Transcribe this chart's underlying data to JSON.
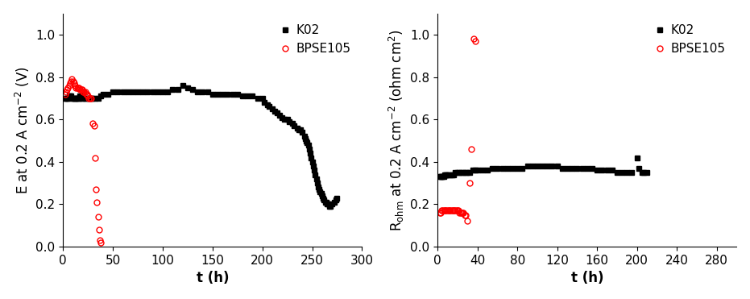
{
  "left": {
    "title": "",
    "xlabel": "t (h)",
    "ylabel": "E at 0.2 A cm⁻² (V)",
    "xlim": [
      0,
      300
    ],
    "ylim": [
      0.0,
      1.1
    ],
    "yticks": [
      0.0,
      0.2,
      0.4,
      0.6,
      0.8,
      1.0
    ],
    "xticks": [
      0,
      50,
      100,
      150,
      200,
      250,
      300
    ],
    "K02_t": [
      2,
      3,
      4,
      5,
      6,
      7,
      8,
      9,
      10,
      11,
      12,
      13,
      14,
      15,
      16,
      17,
      18,
      19,
      20,
      22,
      24,
      26,
      28,
      30,
      32,
      35,
      38,
      40,
      45,
      50,
      55,
      60,
      65,
      70,
      75,
      80,
      85,
      90,
      95,
      100,
      105,
      110,
      115,
      120,
      125,
      130,
      135,
      140,
      145,
      150,
      155,
      160,
      165,
      170,
      175,
      180,
      185,
      190,
      195,
      200,
      202,
      205,
      207,
      210,
      212,
      215,
      217,
      220,
      222,
      225,
      227,
      230,
      232,
      235,
      237,
      238,
      240,
      242,
      243,
      244,
      245,
      246,
      247,
      248,
      249,
      250,
      251,
      252,
      253,
      254,
      255,
      256,
      257,
      258,
      259,
      260,
      261,
      262,
      263,
      264,
      265,
      266,
      267,
      268,
      270,
      272,
      274,
      275
    ],
    "K02_E": [
      0.7,
      0.7,
      0.7,
      0.7,
      0.71,
      0.71,
      0.71,
      0.7,
      0.7,
      0.7,
      0.7,
      0.7,
      0.7,
      0.7,
      0.7,
      0.71,
      0.71,
      0.7,
      0.7,
      0.7,
      0.7,
      0.7,
      0.7,
      0.7,
      0.7,
      0.7,
      0.71,
      0.72,
      0.72,
      0.73,
      0.73,
      0.73,
      0.73,
      0.73,
      0.73,
      0.73,
      0.73,
      0.73,
      0.73,
      0.73,
      0.73,
      0.74,
      0.74,
      0.76,
      0.75,
      0.74,
      0.73,
      0.73,
      0.73,
      0.72,
      0.72,
      0.72,
      0.72,
      0.72,
      0.72,
      0.71,
      0.71,
      0.71,
      0.7,
      0.7,
      0.68,
      0.67,
      0.66,
      0.65,
      0.64,
      0.63,
      0.62,
      0.61,
      0.6,
      0.6,
      0.59,
      0.58,
      0.57,
      0.56,
      0.55,
      0.55,
      0.54,
      0.52,
      0.51,
      0.5,
      0.49,
      0.48,
      0.46,
      0.44,
      0.42,
      0.4,
      0.38,
      0.36,
      0.34,
      0.32,
      0.3,
      0.28,
      0.27,
      0.26,
      0.25,
      0.24,
      0.23,
      0.22,
      0.21,
      0.21,
      0.2,
      0.2,
      0.19,
      0.19,
      0.2,
      0.21,
      0.22,
      0.23
    ],
    "BPSE105_t": [
      2,
      3,
      4,
      5,
      6,
      7,
      8,
      9,
      10,
      11,
      12,
      13,
      14,
      15,
      16,
      17,
      18,
      19,
      20,
      21,
      22,
      23,
      24,
      25,
      26,
      27,
      28,
      30,
      31,
      32,
      33,
      34,
      35,
      36,
      37,
      38
    ],
    "BPSE105_E": [
      0.72,
      0.73,
      0.74,
      0.75,
      0.76,
      0.77,
      0.78,
      0.79,
      0.78,
      0.77,
      0.76,
      0.75,
      0.75,
      0.75,
      0.75,
      0.74,
      0.74,
      0.74,
      0.73,
      0.73,
      0.73,
      0.72,
      0.72,
      0.71,
      0.7,
      0.7,
      0.7,
      0.58,
      0.57,
      0.42,
      0.27,
      0.21,
      0.14,
      0.08,
      0.03,
      0.02
    ]
  },
  "right": {
    "title": "",
    "xlabel": "t (h)",
    "ylabel": "R₀ₕₘ at 0.2 A cm⁻² (ohm cm²)",
    "xlim": [
      0,
      300
    ],
    "ylim": [
      0.0,
      1.1
    ],
    "yticks": [
      0.0,
      0.2,
      0.4,
      0.6,
      0.8,
      1.0
    ],
    "xticks": [
      0,
      40,
      80,
      120,
      160,
      200,
      240,
      280
    ],
    "K02_t": [
      2,
      3,
      4,
      5,
      6,
      7,
      8,
      9,
      10,
      12,
      14,
      16,
      18,
      20,
      22,
      24,
      26,
      28,
      30,
      32,
      35,
      38,
      40,
      45,
      50,
      55,
      60,
      65,
      70,
      75,
      80,
      85,
      90,
      95,
      100,
      105,
      110,
      115,
      120,
      125,
      130,
      135,
      140,
      145,
      150,
      155,
      160,
      165,
      170,
      175,
      180,
      185,
      190,
      195,
      200,
      202,
      205,
      207,
      210
    ],
    "K02_R": [
      0.33,
      0.33,
      0.33,
      0.33,
      0.33,
      0.34,
      0.34,
      0.34,
      0.34,
      0.34,
      0.34,
      0.34,
      0.35,
      0.35,
      0.35,
      0.35,
      0.35,
      0.35,
      0.35,
      0.35,
      0.36,
      0.36,
      0.36,
      0.36,
      0.36,
      0.37,
      0.37,
      0.37,
      0.37,
      0.37,
      0.37,
      0.37,
      0.38,
      0.38,
      0.38,
      0.38,
      0.38,
      0.38,
      0.38,
      0.37,
      0.37,
      0.37,
      0.37,
      0.37,
      0.37,
      0.37,
      0.36,
      0.36,
      0.36,
      0.36,
      0.35,
      0.35,
      0.35,
      0.35,
      0.42,
      0.37,
      0.35,
      0.35,
      0.35
    ],
    "BPSE105_t": [
      2,
      3,
      4,
      5,
      6,
      7,
      8,
      9,
      10,
      11,
      12,
      13,
      14,
      15,
      16,
      17,
      18,
      19,
      20,
      21,
      22,
      23,
      24,
      25,
      26,
      27,
      28,
      30,
      32,
      34,
      36,
      38
    ],
    "BPSE105_R": [
      0.16,
      0.16,
      0.17,
      0.17,
      0.17,
      0.17,
      0.17,
      0.17,
      0.17,
      0.17,
      0.17,
      0.17,
      0.17,
      0.17,
      0.17,
      0.17,
      0.17,
      0.17,
      0.17,
      0.17,
      0.16,
      0.16,
      0.16,
      0.16,
      0.16,
      0.15,
      0.15,
      0.12,
      0.3,
      0.46,
      0.98,
      0.97
    ]
  },
  "legend_K02_label": "K02",
  "legend_BPSE105_label": "BPSE105",
  "K02_color": "#000000",
  "BPSE105_color": "#ff0000",
  "marker_K02": "s",
  "marker_BPSE105": "o",
  "markersize": 4,
  "fontsize_label": 12,
  "fontsize_tick": 11,
  "fontsize_legend": 11
}
